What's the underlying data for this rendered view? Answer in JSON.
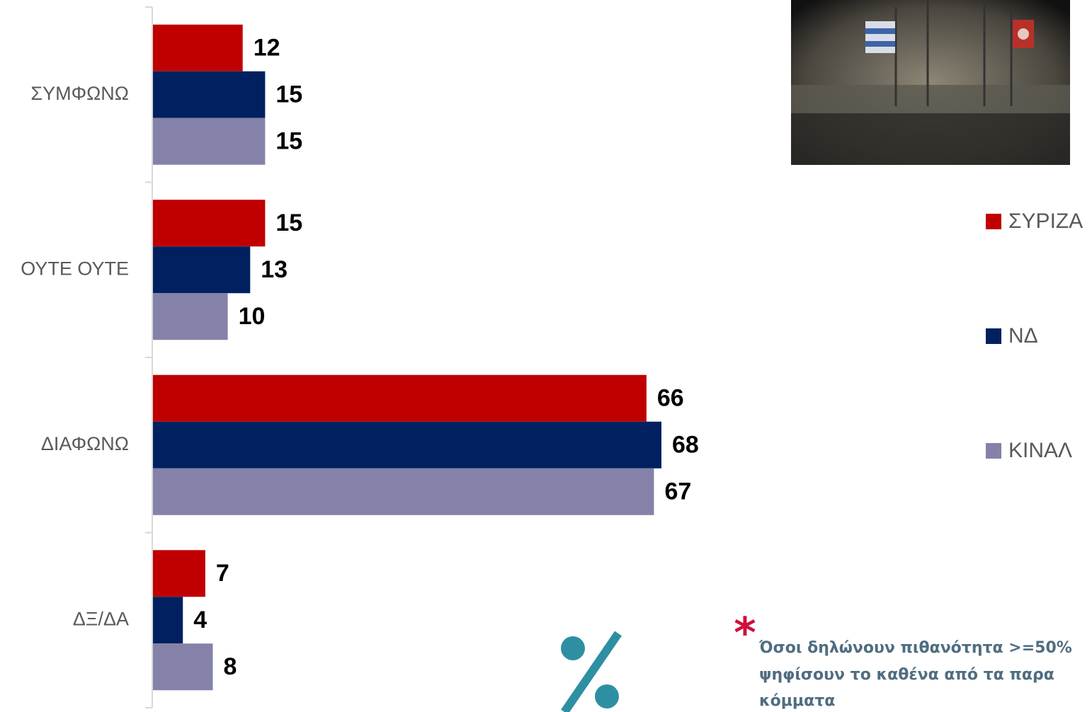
{
  "chart_data": {
    "type": "bar",
    "orientation": "horizontal",
    "categories": [
      "ΣΥΜΦΩΝΩ",
      "ΟΥΤΕ ΟΥΤΕ",
      "ΔΙΑΦΩΝΩ",
      "ΔΞ/ΔΑ"
    ],
    "series": [
      {
        "name": "ΣΥΡΙΖΑ",
        "color": "#c00000",
        "values": [
          12,
          15,
          66,
          7
        ]
      },
      {
        "name": "ΝΔ",
        "color": "#002060",
        "values": [
          15,
          13,
          68,
          4
        ]
      },
      {
        "name": "ΚΙΝΑΛ",
        "color": "#8482a8",
        "values": [
          15,
          10,
          67,
          8
        ]
      }
    ],
    "legend": "right"
  },
  "footnote": {
    "marker": "*",
    "lines": [
      "Όσοι δηλώνουν πιθανότητα >=50%",
      "ψηφίσουν το καθένα από τα παρα",
      "κόμματα"
    ]
  }
}
